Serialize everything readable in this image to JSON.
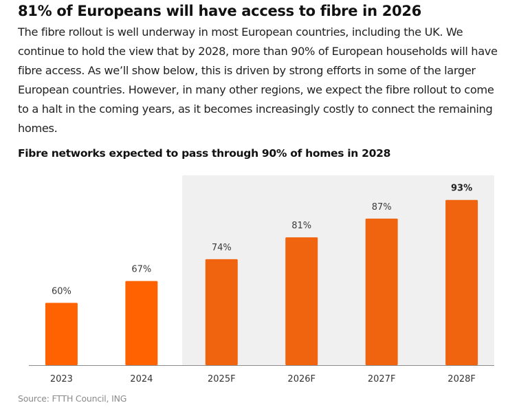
{
  "article": {
    "heading": "81% of Europeans will have access to fibre in 2026",
    "paragraph": "The fibre rollout is well underway in most European countries, including the UK. We continue to hold the view that by 2028, more than 90% of European households will have fibre access. As we’ll show below, this is driven by strong efforts in some of the larger European countries. However, in many other regions, we expect the fibre rollout to come to a halt in the coming years, as it becomes increasingly costly to connect the remaining homes."
  },
  "chart_data": {
    "type": "bar",
    "title": "Fibre networks expected to pass through 90% of homes in 2028",
    "categories": [
      "2023",
      "2024",
      "2025F",
      "2026F",
      "2027F",
      "2028F"
    ],
    "values": [
      60,
      67,
      74,
      81,
      87,
      93
    ],
    "data_labels": [
      "60%",
      "67%",
      "74%",
      "81%",
      "87%",
      "93%"
    ],
    "highlighted_label_index": 5,
    "forecast_shading": {
      "from_category": "2025F",
      "to_category": "2028F"
    },
    "xlabel": "",
    "ylabel": "",
    "ylim": [
      40,
      100
    ],
    "grid": false,
    "legend": "none",
    "source": "Source: FTTH Council, ING"
  },
  "colors": {
    "bar_actual": "#ff6200",
    "bar_forecast": "#f06410",
    "forecast_background": "#f0f0f0",
    "axis_line": "#8c8c8c"
  }
}
